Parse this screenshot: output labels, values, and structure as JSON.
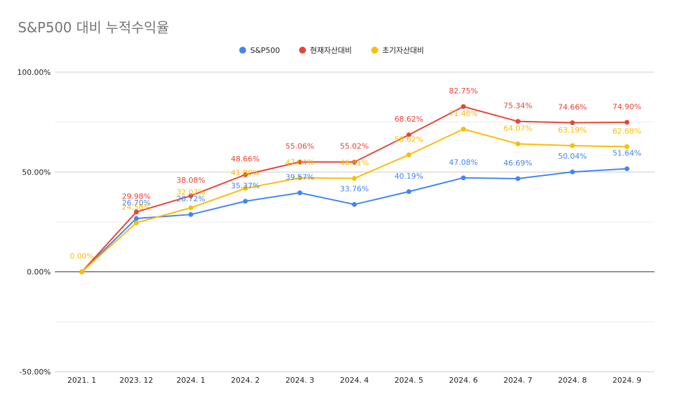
{
  "chart_data": {
    "type": "line",
    "title": "S&P500 대비 누적수익율",
    "xlabel": "",
    "ylabel": "",
    "categories": [
      "2021. 1",
      "2023. 12",
      "2024. 1",
      "2024. 2",
      "2024. 3",
      "2024. 4",
      "2024. 5",
      "2024. 6",
      "2024. 7",
      "2024. 8",
      "2024. 9"
    ],
    "ylim": [
      -50,
      100
    ],
    "yticks": [
      -50,
      0,
      50,
      100
    ],
    "ytick_labels": [
      "-50.00%",
      "0.00%",
      "50.00%",
      "100.00%"
    ],
    "grid": true,
    "legend_position": "top-center",
    "series": [
      {
        "name": "S&P500",
        "color": "#4285F4",
        "values": [
          0,
          26.7,
          28.72,
          35.37,
          39.57,
          33.76,
          40.19,
          47.08,
          46.69,
          50.04,
          51.64
        ],
        "labels": [
          "",
          "26.70%",
          "28.72%",
          "35.37%",
          "39.57%",
          "33.76%",
          "40.19%",
          "47.08%",
          "46.69%",
          "50.04%",
          "51.64%"
        ]
      },
      {
        "name": "현재자산대비",
        "color": "#EA4335",
        "values": [
          0,
          29.98,
          38.08,
          48.66,
          55.06,
          55.02,
          68.62,
          82.75,
          75.34,
          74.66,
          74.9
        ],
        "labels": [
          "",
          "29.98%",
          "38.08%",
          "48.66%",
          "55.06%",
          "55.02%",
          "68.62%",
          "82.75%",
          "75.34%",
          "74.66%",
          "74.90%"
        ]
      },
      {
        "name": "초기자산대비",
        "color": "#FBBC04",
        "values": [
          0,
          24.58,
          32.07,
          41.8,
          47.04,
          46.81,
          58.62,
          71.48,
          64.07,
          63.19,
          62.68
        ],
        "labels": [
          "0.00%",
          "24.58%",
          "32.07%",
          "41.80%",
          "47.04%",
          "46.81%",
          "58.62%",
          "71.48%",
          "64.07%",
          "63.19%",
          "62.68%"
        ]
      }
    ]
  }
}
